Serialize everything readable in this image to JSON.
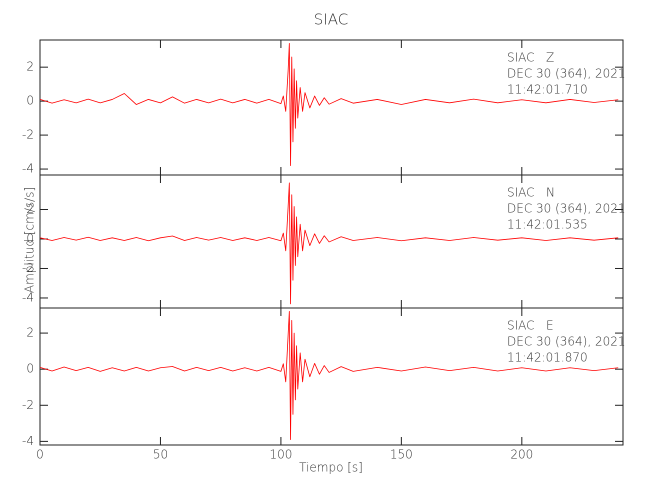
{
  "chart_data": [
    {
      "type": "line",
      "title": "SIAC",
      "color": "#ff0000",
      "annotations": [
        "SIAC   Z",
        "DEC 30 (364), 2021",
        "11:42:01.710"
      ],
      "xlim": [
        0,
        242
      ],
      "ylim": [
        -4.35,
        3.6
      ],
      "yticks": [
        2,
        0,
        -2,
        -4
      ],
      "x": [
        0,
        5,
        10,
        15,
        20,
        25,
        30,
        35,
        40,
        45,
        50,
        55,
        60,
        65,
        70,
        75,
        80,
        85,
        90,
        95,
        100,
        101,
        102,
        103,
        103.5,
        104,
        104.5,
        105,
        105.5,
        106,
        106.5,
        107,
        108,
        109,
        110,
        112,
        114,
        116,
        118,
        120,
        125,
        130,
        140,
        150,
        160,
        170,
        180,
        190,
        200,
        210,
        220,
        230,
        240
      ],
      "values": [
        0.1,
        -0.12,
        0.08,
        -0.1,
        0.12,
        -0.1,
        0.1,
        0.45,
        -0.2,
        0.1,
        -0.1,
        0.25,
        -0.12,
        0.1,
        -0.1,
        0.12,
        -0.1,
        0.1,
        -0.12,
        0.1,
        -0.15,
        0.3,
        -0.6,
        1.8,
        3.4,
        -3.8,
        2.6,
        -2.4,
        1.9,
        -1.6,
        1.2,
        -1.0,
        0.8,
        -0.6,
        0.5,
        -0.4,
        0.3,
        -0.25,
        0.2,
        -0.18,
        0.15,
        -0.12,
        0.1,
        -0.2,
        0.1,
        -0.1,
        0.12,
        -0.1,
        0.08,
        -0.1,
        0.1,
        -0.08,
        0.08
      ]
    },
    {
      "type": "line",
      "ylabel": "Amplitud [cm/s/s]",
      "color": "#ff0000",
      "annotations": [
        "SIAC   N",
        "DEC 30 (364), 2021",
        "11:42:01.535"
      ],
      "xlim": [
        0,
        242
      ],
      "ylim": [
        -4.68,
        4.34
      ],
      "yticks": [
        2,
        0,
        -2,
        -4
      ],
      "x": [
        0,
        5,
        10,
        15,
        20,
        25,
        30,
        35,
        40,
        45,
        50,
        55,
        60,
        65,
        70,
        75,
        80,
        85,
        90,
        95,
        100,
        101,
        102,
        103,
        103.5,
        104,
        104.5,
        105,
        105.5,
        106,
        106.5,
        107,
        108,
        109,
        110,
        112,
        114,
        116,
        118,
        120,
        125,
        130,
        140,
        150,
        160,
        170,
        180,
        190,
        200,
        210,
        220,
        230,
        240
      ],
      "values": [
        0.08,
        -0.1,
        0.1,
        -0.08,
        0.12,
        -0.1,
        0.08,
        -0.1,
        0.1,
        -0.12,
        0.08,
        0.2,
        -0.1,
        0.1,
        -0.08,
        0.1,
        -0.1,
        0.08,
        -0.1,
        0.1,
        -0.12,
        0.4,
        -0.8,
        2.2,
        3.8,
        -4.4,
        3.0,
        -2.8,
        2.2,
        -1.8,
        1.5,
        -1.2,
        1.0,
        -0.8,
        0.6,
        -0.45,
        0.35,
        -0.3,
        0.22,
        -0.2,
        0.15,
        -0.1,
        0.1,
        -0.12,
        0.08,
        -0.1,
        0.1,
        -0.08,
        0.08,
        -0.1,
        0.08,
        -0.08,
        0.08
      ]
    },
    {
      "type": "line",
      "xlabel": "Tiempo [s]",
      "color": "#ff0000",
      "annotations": [
        "SIAC   E",
        "DEC 30 (364), 2021",
        "11:42:01.870"
      ],
      "xlim": [
        0,
        242
      ],
      "ylim": [
        -4.2,
        3.39
      ],
      "yticks": [
        2,
        0,
        -2,
        -4
      ],
      "xticks": [
        0,
        50,
        100,
        150,
        200
      ],
      "x": [
        0,
        5,
        10,
        15,
        20,
        25,
        30,
        35,
        40,
        45,
        50,
        55,
        60,
        65,
        70,
        75,
        80,
        85,
        90,
        95,
        100,
        101,
        102,
        103,
        103.5,
        104,
        104.5,
        105,
        105.5,
        106,
        106.5,
        107,
        108,
        109,
        110,
        112,
        114,
        116,
        118,
        120,
        125,
        130,
        140,
        150,
        160,
        170,
        180,
        190,
        200,
        210,
        220,
        230,
        240
      ],
      "values": [
        0.1,
        -0.1,
        0.12,
        -0.08,
        0.1,
        -0.12,
        0.08,
        -0.1,
        0.1,
        -0.1,
        0.08,
        0.15,
        -0.1,
        0.1,
        -0.08,
        0.1,
        -0.1,
        0.08,
        -0.1,
        0.1,
        -0.12,
        0.3,
        -0.7,
        1.9,
        3.2,
        -3.9,
        2.7,
        -2.5,
        2.0,
        -1.7,
        1.3,
        -1.1,
        0.9,
        -0.7,
        0.55,
        -0.42,
        0.32,
        -0.28,
        0.2,
        -0.18,
        0.14,
        -0.12,
        0.1,
        -0.1,
        0.12,
        -0.08,
        0.1,
        -0.1,
        0.08,
        -0.1,
        0.08,
        -0.08,
        0.08
      ]
    }
  ]
}
